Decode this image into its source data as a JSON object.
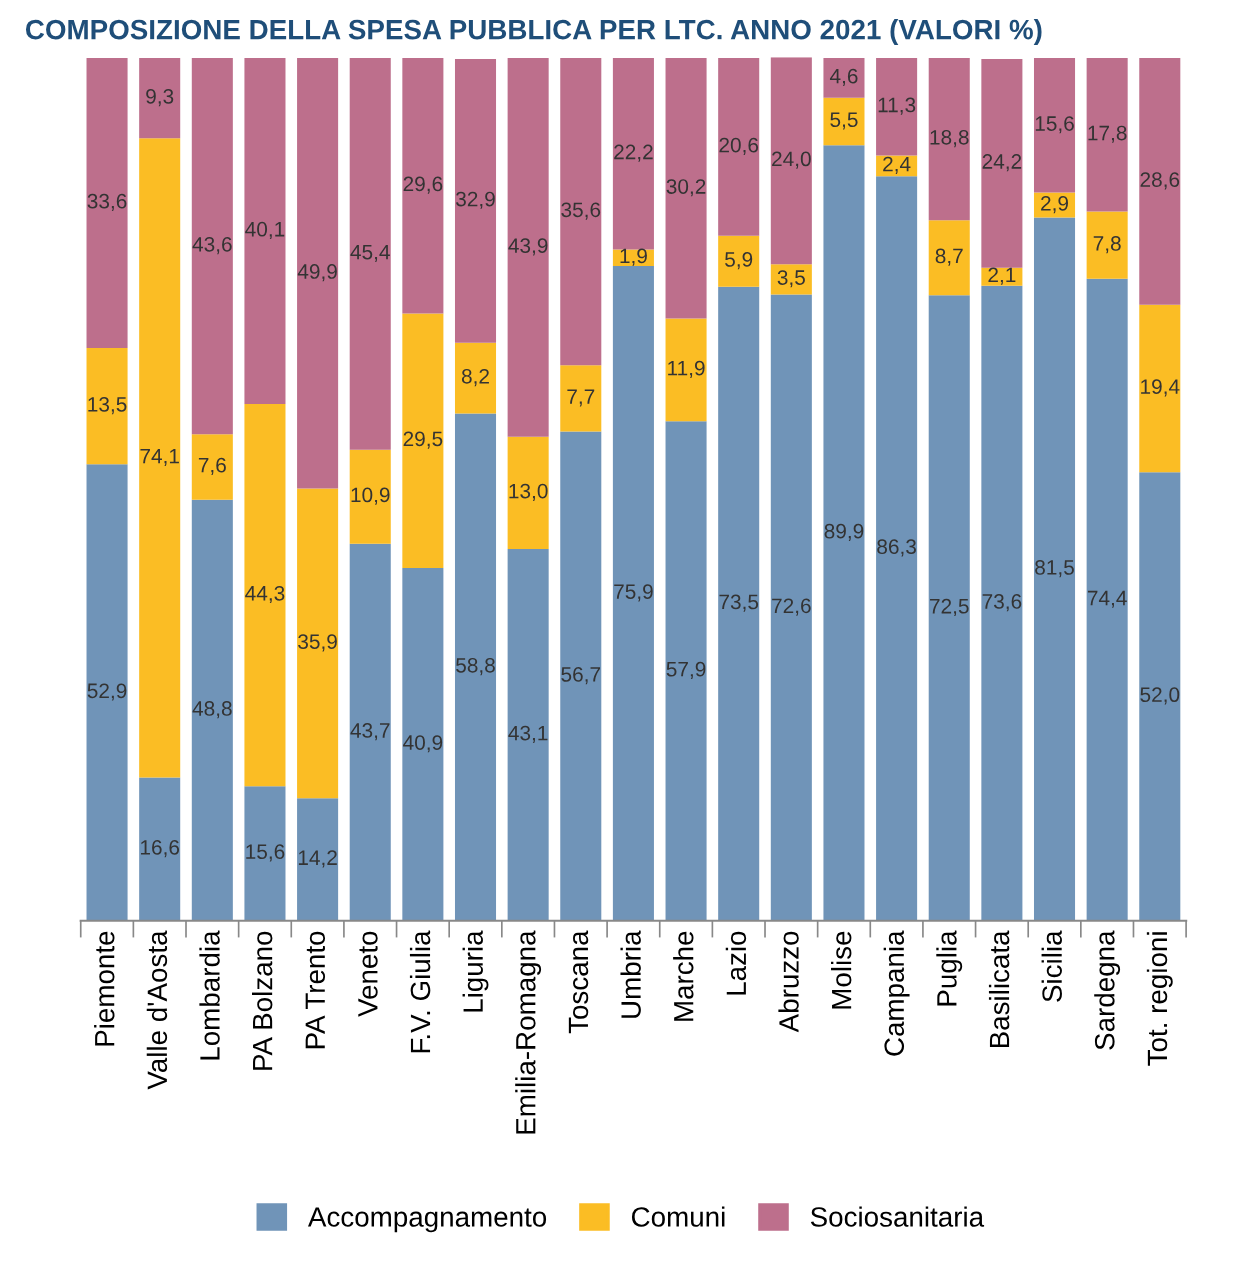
{
  "chart_data": {
    "type": "bar",
    "stacked": true,
    "title": "COMPOSIZIONE DELLA SPESA PUBBLICA PER LTC. ANNO 2021 (VALORI %)",
    "legend": "bottom",
    "grid": false,
    "tick_labels": "x",
    "categories": [
      "Piemonte",
      "Valle d'Aosta",
      "Lombardia",
      "PA Bolzano",
      "PA Trento",
      "Veneto",
      "F.V. Giulia",
      "Liguria",
      "Emilia-Romagna",
      "Toscana",
      "Umbria",
      "Marche",
      "Lazio",
      "Abruzzo",
      "Molise",
      "Campania",
      "Puglia",
      "Basilicata",
      "Sicilia",
      "Sardegna",
      "Tot. regioni"
    ],
    "series": [
      {
        "name": "Accompagnamento",
        "color": "#7094b8",
        "values": [
          52.9,
          16.6,
          48.8,
          15.6,
          14.2,
          43.7,
          40.9,
          58.8,
          43.1,
          56.7,
          75.9,
          57.9,
          73.5,
          72.6,
          89.9,
          86.3,
          72.5,
          73.6,
          81.5,
          74.4,
          52.0
        ],
        "value_labels": [
          "52,9",
          "16,6",
          "48,8",
          "15,6",
          "14,2",
          "43,7",
          "40,9",
          "58,8",
          "43,1",
          "56,7",
          "75,9",
          "57,9",
          "73,5",
          "72,6",
          "89,9",
          "86,3",
          "72,5",
          "73,6",
          "81,5",
          "74,4",
          "52,0"
        ]
      },
      {
        "name": "Comuni",
        "color": "#fbbd24",
        "values": [
          13.5,
          74.1,
          7.6,
          44.3,
          35.9,
          10.9,
          29.5,
          8.2,
          13.0,
          7.7,
          1.9,
          11.9,
          5.9,
          3.5,
          5.5,
          2.4,
          8.7,
          2.1,
          2.9,
          7.8,
          19.4
        ],
        "value_labels": [
          "13,5",
          "74,1",
          "7,6",
          "44,3",
          "35,9",
          "10,9",
          "29,5",
          "8,2",
          "13,0",
          "7,7",
          "1,9",
          "11,9",
          "5,9",
          "3,5",
          "5,5",
          "2,4",
          "8,7",
          "2,1",
          "2,9",
          "7,8",
          "19,4"
        ]
      },
      {
        "name": "Sociosanitaria",
        "color": "#bd6f8c",
        "values": [
          33.6,
          9.3,
          43.6,
          40.1,
          49.9,
          45.4,
          29.6,
          32.9,
          43.9,
          35.6,
          22.2,
          30.2,
          20.6,
          24.0,
          4.6,
          11.3,
          18.8,
          24.2,
          15.6,
          17.8,
          28.6
        ],
        "value_labels": [
          "33,6",
          "9,3",
          "43,6",
          "40,1",
          "49,9",
          "45,4",
          "29,6",
          "32,9",
          "43,9",
          "35,6",
          "22,2",
          "30,2",
          "20,6",
          "24,0",
          "4,6",
          "11,3",
          "18,8",
          "24,2",
          "15,6",
          "17,8",
          "28,6"
        ]
      }
    ]
  }
}
